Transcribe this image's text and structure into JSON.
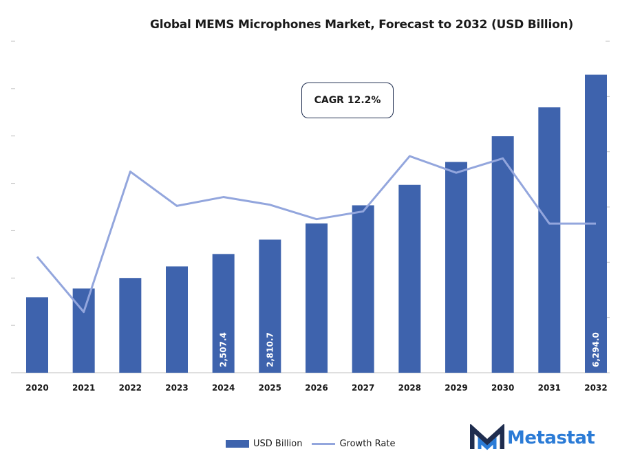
{
  "colors": {
    "bar": "#3e63ad",
    "line": "#93a6dd",
    "axis": "#bfbfbf",
    "text": "#1a1a1a",
    "brand": "#2b7bd6",
    "brand_dark": "#1f2d4f"
  },
  "chart_data": {
    "type": "bar+line",
    "title": "Global MEMS Microphones Market, Forecast to 2032 (USD Billion)",
    "categories": [
      "2020",
      "2021",
      "2022",
      "2023",
      "2024",
      "2025",
      "2026",
      "2027",
      "2028",
      "2029",
      "2030",
      "2031",
      "2032"
    ],
    "series": [
      {
        "name": "USD Billion",
        "type": "bar",
        "axis": "left",
        "values": [
          1593,
          1779,
          2001,
          2245,
          2507.4,
          2810.7,
          3153,
          3536,
          3968,
          4451,
          4994,
          5604,
          6294.0
        ]
      },
      {
        "name": "Growth Rate",
        "type": "line",
        "axis": "right",
        "values": [
          10.5,
          5.5,
          18.2,
          15.1,
          15.9,
          15.2,
          13.9,
          14.6,
          19.6,
          18.1,
          19.4,
          13.5,
          13.5
        ]
      }
    ],
    "data_labels": [
      {
        "index": 4,
        "text": "2,507.4"
      },
      {
        "index": 5,
        "text": "2,810.7"
      },
      {
        "index": 12,
        "text": "6,294.0"
      }
    ],
    "annotation": "CAGR 12.2%",
    "ylim_left": [
      0,
      7000
    ],
    "ylim_right": [
      0,
      30
    ],
    "grid": false,
    "legend_position": "bottom-center"
  },
  "logo": {
    "text": "Metastat"
  }
}
